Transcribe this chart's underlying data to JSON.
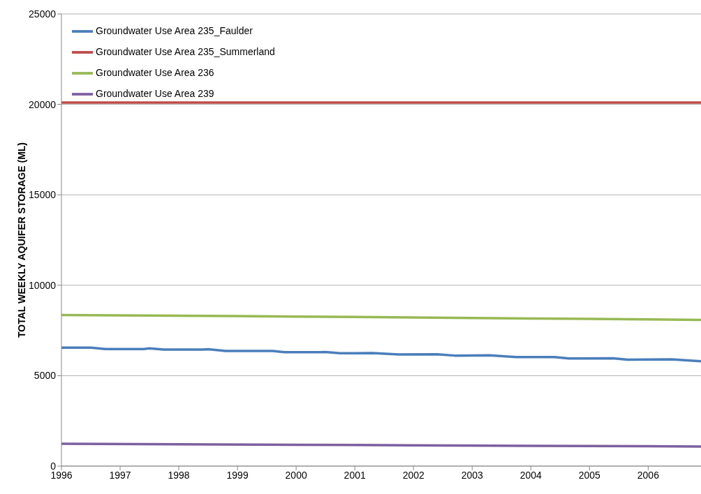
{
  "chart_data": {
    "type": "line",
    "ylabel": "TOTAL WEEKLY AQUIFER STORAGE (ML)",
    "xlim": [
      1996,
      2006.9
    ],
    "xticks": [
      1996,
      1997,
      1998,
      1999,
      2000,
      2001,
      2002,
      2003,
      2004,
      2005,
      2006
    ],
    "ylim": [
      0,
      25000
    ],
    "yticks": [
      0,
      5000,
      10000,
      15000,
      20000,
      25000
    ],
    "grid": "y",
    "legend": "top left",
    "marker": "none",
    "line_style": "solid",
    "series": [
      {
        "name": "Groundwater Use Area 235_Faulder",
        "color": "#4a7ebb",
        "x": [
          1996,
          1996.5,
          1996.75,
          1997.4,
          1997.5,
          1997.75,
          1998.4,
          1998.5,
          1998.8,
          1999.4,
          1999.6,
          1999.8,
          2000.4,
          2000.5,
          2000.75,
          2001.3,
          2001.75,
          2002.4,
          2002.7,
          2003.3,
          2003.75,
          2004.4,
          2004.65,
          2005.4,
          2005.65,
          2006.4,
          2006.9
        ],
        "values": [
          6550,
          6550,
          6470,
          6470,
          6510,
          6440,
          6440,
          6460,
          6370,
          6370,
          6370,
          6300,
          6300,
          6310,
          6240,
          6250,
          6170,
          6180,
          6110,
          6120,
          6030,
          6030,
          5950,
          5960,
          5880,
          5900,
          5800
        ]
      },
      {
        "name": "Groundwater Use Area 235_Summerland",
        "color": "#be4b48",
        "x": [
          1996,
          2006.9
        ],
        "values": [
          20100,
          20100
        ]
      },
      {
        "name": "Groundwater Use Area 236",
        "color": "#98b954",
        "x": [
          1996,
          1997,
          1998,
          1999,
          2000,
          2001,
          2002,
          2003,
          2004,
          2005,
          2006,
          2006.9
        ],
        "values": [
          8350,
          8330,
          8310,
          8290,
          8270,
          8250,
          8220,
          8190,
          8160,
          8140,
          8110,
          8080
        ]
      },
      {
        "name": "Groundwater Use Area 239",
        "color": "#7d60a0",
        "x": [
          1996,
          1998,
          2000,
          2002,
          2004,
          2006,
          2006.9
        ],
        "values": [
          1230,
          1210,
          1180,
          1150,
          1120,
          1100,
          1080
        ]
      }
    ]
  }
}
